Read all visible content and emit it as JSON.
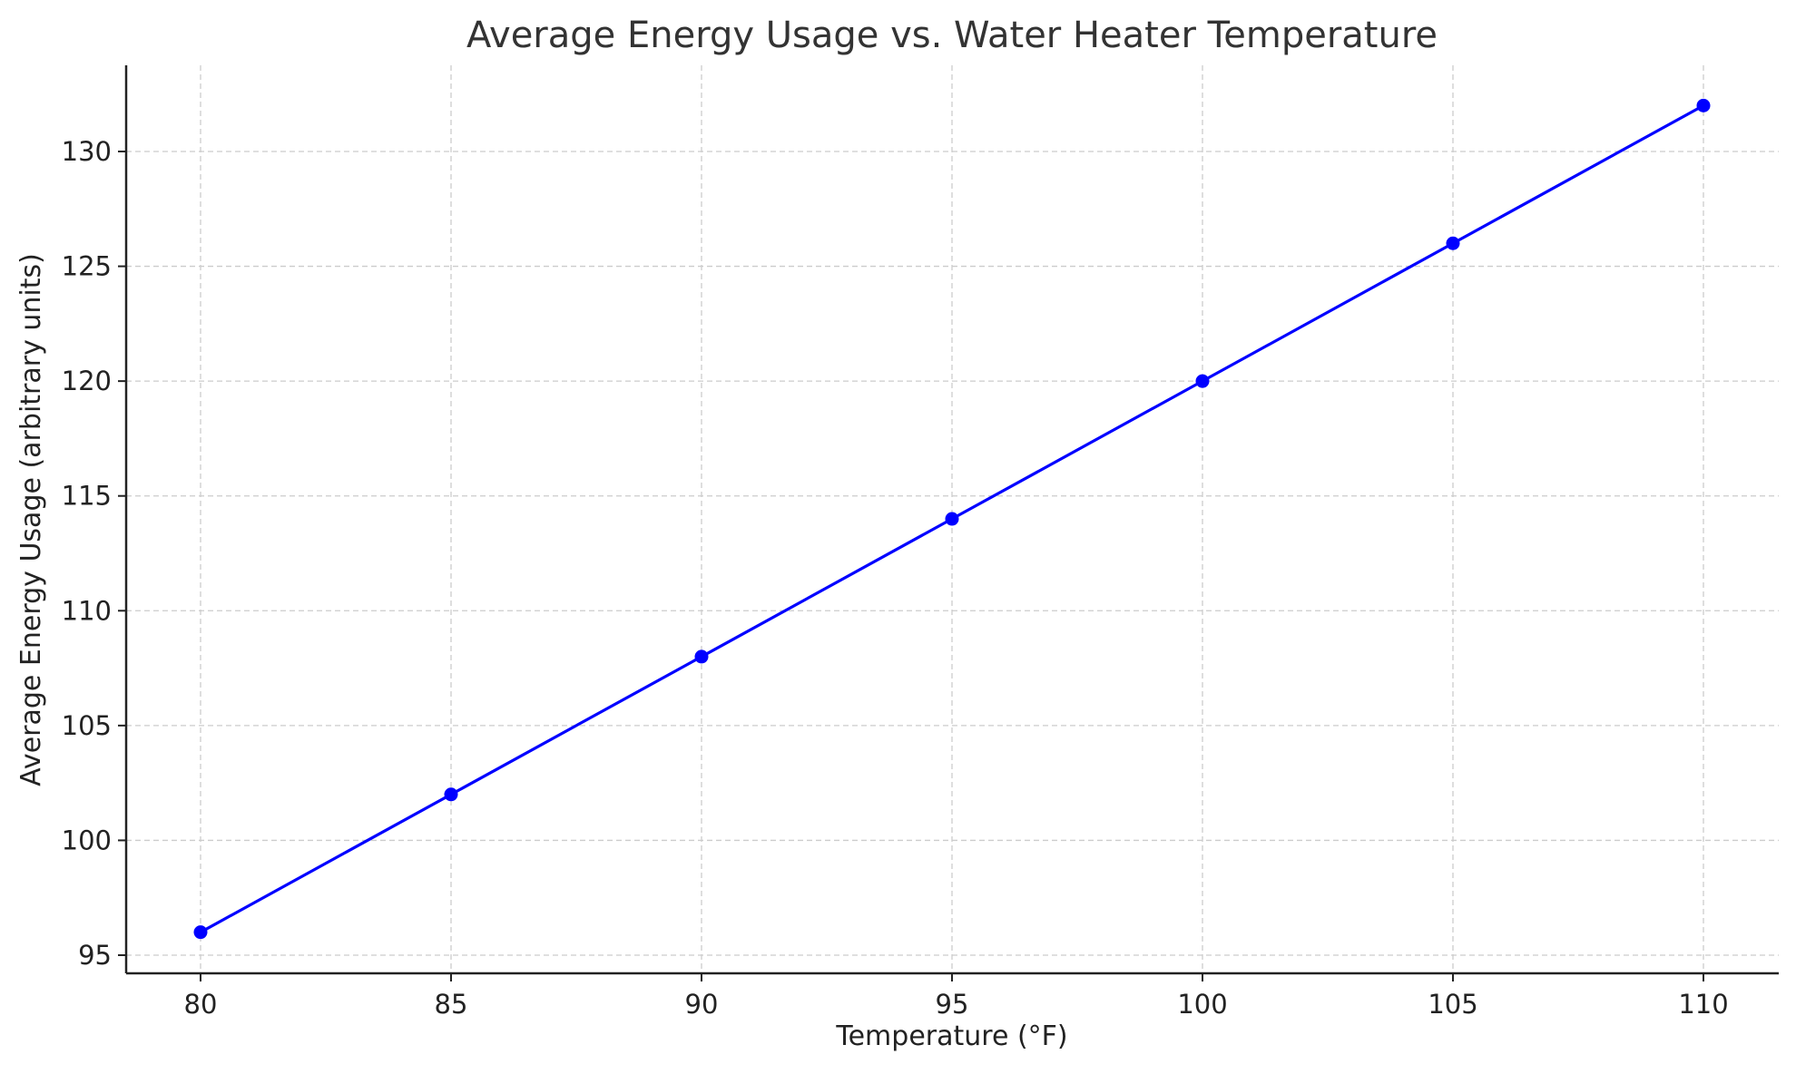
{
  "chart_data": {
    "type": "line",
    "title": "Average Energy Usage vs. Water Heater Temperature",
    "xlabel": "Temperature (°F)",
    "ylabel": "Average Energy Usage (arbitrary units)",
    "x": [
      80,
      85,
      90,
      95,
      100,
      105,
      110
    ],
    "series": [
      {
        "values": [
          96,
          102,
          108,
          114,
          120,
          126,
          132
        ],
        "color": "#0000ff",
        "marker": "circle"
      }
    ],
    "xticks": [
      80,
      85,
      90,
      95,
      100,
      105,
      110
    ],
    "yticks": [
      95,
      100,
      105,
      110,
      115,
      120,
      125,
      130
    ],
    "xlim": [
      78.5,
      111.5
    ],
    "ylim": [
      94.2,
      133.8
    ],
    "grid": true
  }
}
